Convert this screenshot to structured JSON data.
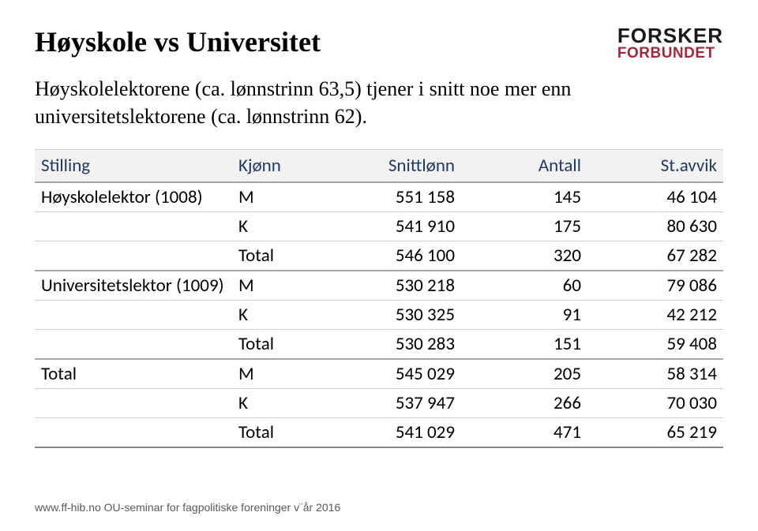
{
  "header": {
    "title": "Høyskole vs Universitet",
    "logo_line1": "FORSKER",
    "logo_line2": "FORBUNDET"
  },
  "subtitle": "Høyskolelektorene (ca. lønnstrinn 63,5) tjener i snitt noe mer enn universitetslektorene (ca. lønnstrinn 62).",
  "table": {
    "columns": [
      "Stilling",
      "Kjønn",
      "Snittlønn",
      "Antall",
      "St.avvik"
    ],
    "rows": [
      {
        "stilling": "Høyskolelektor (1008)",
        "kjonn": "M",
        "snitt": "551 158",
        "antall": "145",
        "avvik": "46 104",
        "sep": false
      },
      {
        "stilling": "",
        "kjonn": "K",
        "snitt": "541 910",
        "antall": "175",
        "avvik": "80 630",
        "sep": false
      },
      {
        "stilling": "",
        "kjonn": "Total",
        "snitt": "546 100",
        "antall": "320",
        "avvik": "67 282",
        "sep": true
      },
      {
        "stilling": "Universitetslektor (1009)",
        "kjonn": "M",
        "snitt": "530 218",
        "antall": "60",
        "avvik": "79 086",
        "sep": false
      },
      {
        "stilling": "",
        "kjonn": "K",
        "snitt": "530 325",
        "antall": "91",
        "avvik": "42 212",
        "sep": false
      },
      {
        "stilling": "",
        "kjonn": "Total",
        "snitt": "530 283",
        "antall": "151",
        "avvik": "59 408",
        "sep": true
      },
      {
        "stilling": "Total",
        "kjonn": "M",
        "snitt": "545 029",
        "antall": "205",
        "avvik": "58 314",
        "sep": false
      },
      {
        "stilling": "",
        "kjonn": "K",
        "snitt": "537 947",
        "antall": "266",
        "avvik": "70 030",
        "sep": false
      },
      {
        "stilling": "",
        "kjonn": "Total",
        "snitt": "541 029",
        "antall": "471",
        "avvik": "65 219",
        "sep": false
      }
    ]
  },
  "footer": "www.ff-hib.no OU-seminar for fagpolitiske foreninger v¨år 2016",
  "style": {
    "title_color": "#000000",
    "header_bg": "#f2f2f2",
    "header_text": "#1f3864",
    "logo_top_color": "#1a1a1a",
    "logo_bottom_color": "#a52838",
    "border_light": "#d0d0d0",
    "border_heavy": "#a6a6a6",
    "footer_color": "#595959",
    "title_fontsize": 36,
    "subtitle_fontsize": 26,
    "table_fontsize": 23
  }
}
